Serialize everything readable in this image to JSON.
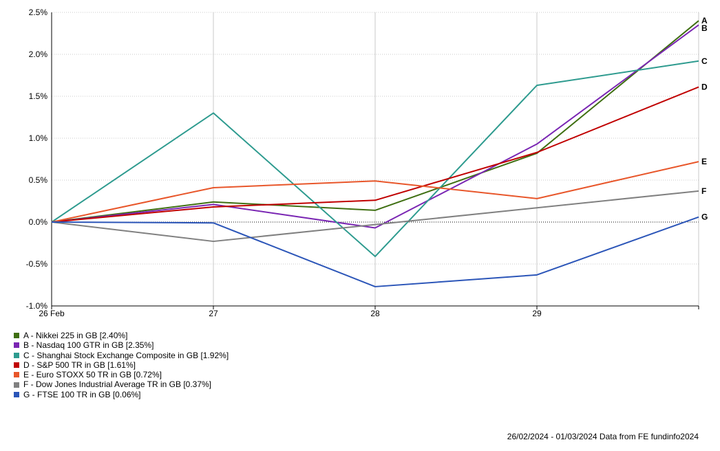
{
  "chart_data": {
    "type": "line",
    "x_labels": [
      "26 Feb",
      "27",
      "28",
      "29",
      ""
    ],
    "y_ticks": [
      "-1.0%",
      "-0.5%",
      "0.0%",
      "0.5%",
      "1.0%",
      "1.5%",
      "2.0%",
      "2.5%"
    ],
    "ylim": [
      -1.0,
      2.5
    ],
    "y_tick_values": [
      -1.0,
      -0.5,
      0.0,
      0.5,
      1.0,
      1.5,
      2.0,
      2.5
    ],
    "grid": true,
    "legend_position": "bottom-left",
    "series": [
      {
        "letter": "A",
        "name": "A - Nikkei 225 in GB [2.40%]",
        "color": "#3f6f12",
        "values": [
          0.0,
          0.24,
          0.14,
          0.82,
          2.4
        ]
      },
      {
        "letter": "B",
        "name": "B - Nasdaq 100 GTR in GB [2.35%]",
        "color": "#7a26b3",
        "values": [
          0.0,
          0.21,
          -0.07,
          0.93,
          2.35
        ]
      },
      {
        "letter": "C",
        "name": "C - Shanghai Stock Exchange Composite in GB [1.92%]",
        "color": "#2e9b8f",
        "values": [
          0.0,
          1.3,
          -0.41,
          1.63,
          1.92
        ]
      },
      {
        "letter": "D",
        "name": "D - S&P 500 TR in GB [1.61%]",
        "color": "#c00000",
        "values": [
          0.0,
          0.18,
          0.26,
          0.83,
          1.61
        ]
      },
      {
        "letter": "E",
        "name": "E - Euro STOXX 50 TR in GB [0.72%]",
        "color": "#e8562a",
        "values": [
          0.0,
          0.41,
          0.49,
          0.28,
          0.72
        ]
      },
      {
        "letter": "F",
        "name": "F - Dow Jones Industrial Average TR in GB [0.37%]",
        "color": "#808080",
        "values": [
          0.0,
          -0.23,
          -0.03,
          0.17,
          0.37
        ]
      },
      {
        "letter": "G",
        "name": "G - FTSE 100 TR in GB [0.06%]",
        "color": "#2b55b8",
        "values": [
          0.0,
          -0.01,
          -0.77,
          -0.63,
          0.06
        ]
      }
    ]
  },
  "footer": {
    "text": "26/02/2024 - 01/03/2024 Data from FE fundinfo2024"
  }
}
